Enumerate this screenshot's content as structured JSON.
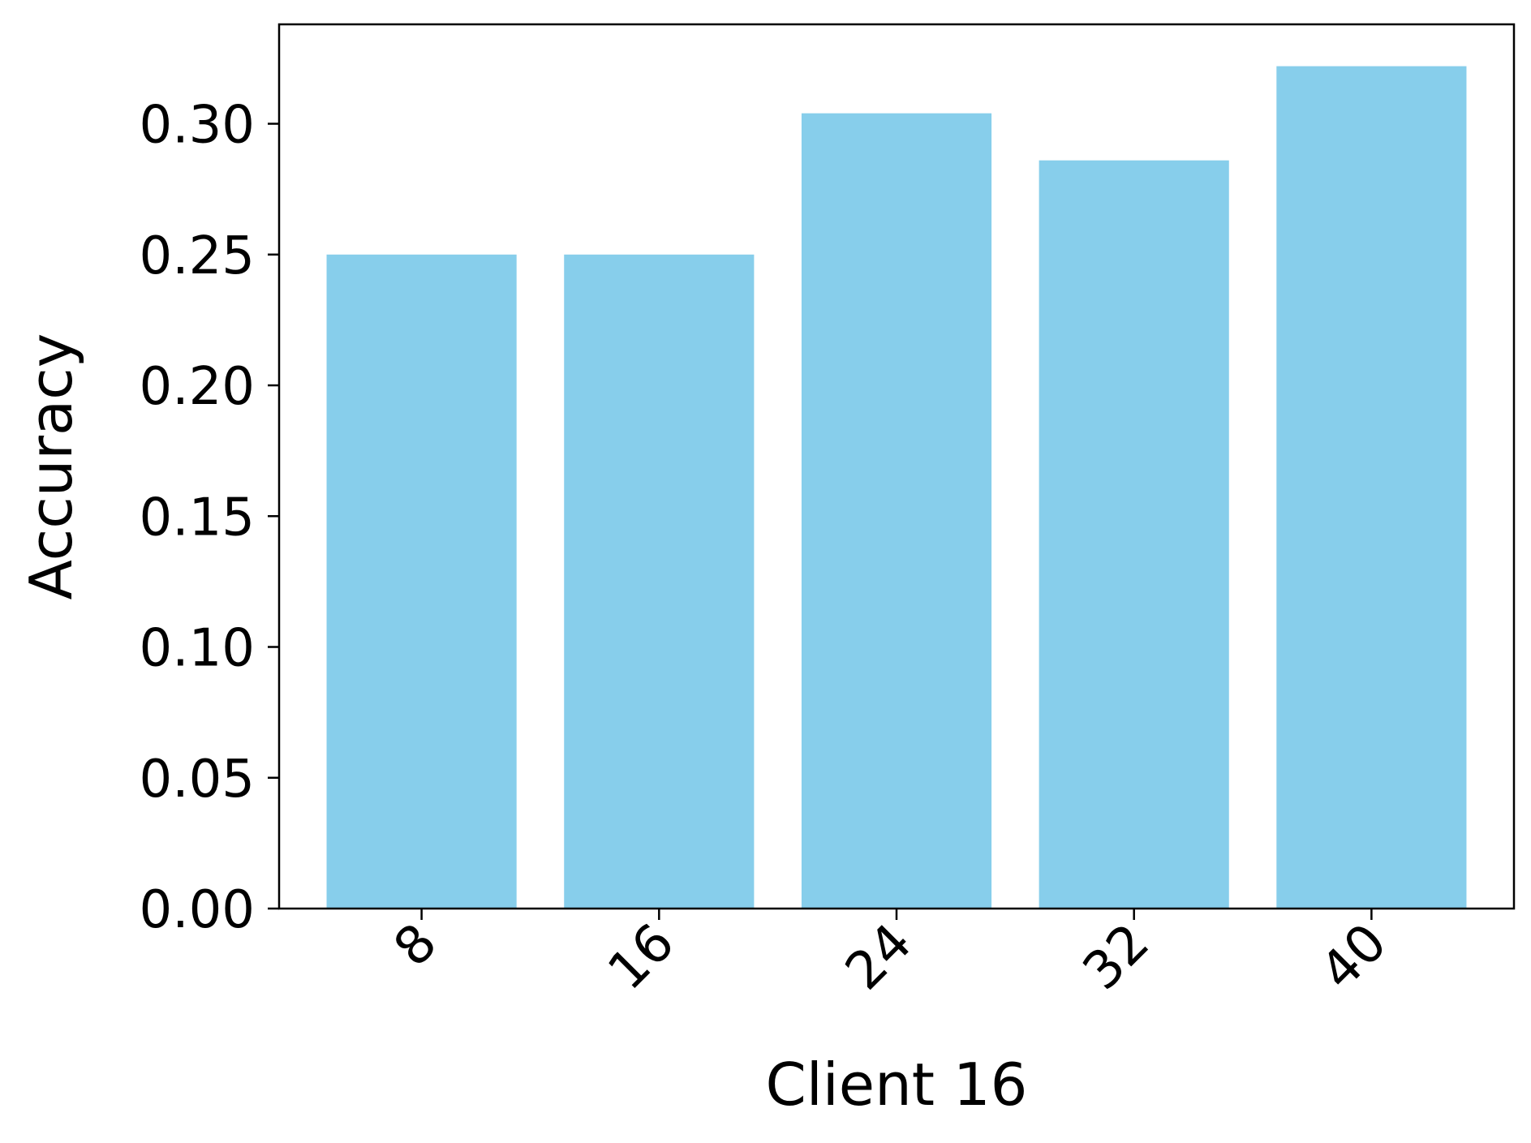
{
  "chart_data": {
    "type": "bar",
    "categories": [
      "8",
      "16",
      "24",
      "32",
      "40"
    ],
    "values": [
      0.25,
      0.25,
      0.304,
      0.286,
      0.322
    ],
    "title": "",
    "xlabel": "Client 16",
    "ylabel": "Accuracy",
    "ylim": [
      0,
      0.338
    ],
    "yticks": [
      "0.00",
      "0.05",
      "0.10",
      "0.15",
      "0.20",
      "0.25",
      "0.30"
    ],
    "x_tick_rotation": "45 degrees",
    "bar_color": "#87CEEB",
    "grid": false,
    "legend": "none"
  }
}
